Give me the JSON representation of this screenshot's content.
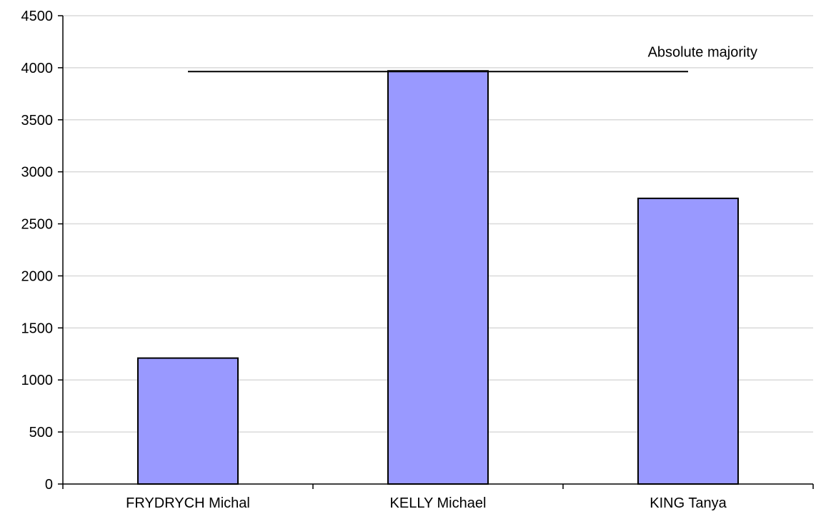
{
  "chart_data": {
    "type": "bar",
    "title": "",
    "xlabel": "",
    "ylabel": "",
    "categories": [
      "FRYDRYCH Michal",
      "KELLY Michael",
      "KING Tanya"
    ],
    "values": [
      1210,
      3970,
      2745
    ],
    "ylim": [
      0,
      4500
    ],
    "yticks": [
      "0",
      "500",
      "1000",
      "1500",
      "2000",
      "2500",
      "3000",
      "3500",
      "4000",
      "4500"
    ],
    "grid": true,
    "legend": "none",
    "bar_color": "#9999ff",
    "reference_line": {
      "label": "Absolute majority",
      "value": 3963
    }
  }
}
